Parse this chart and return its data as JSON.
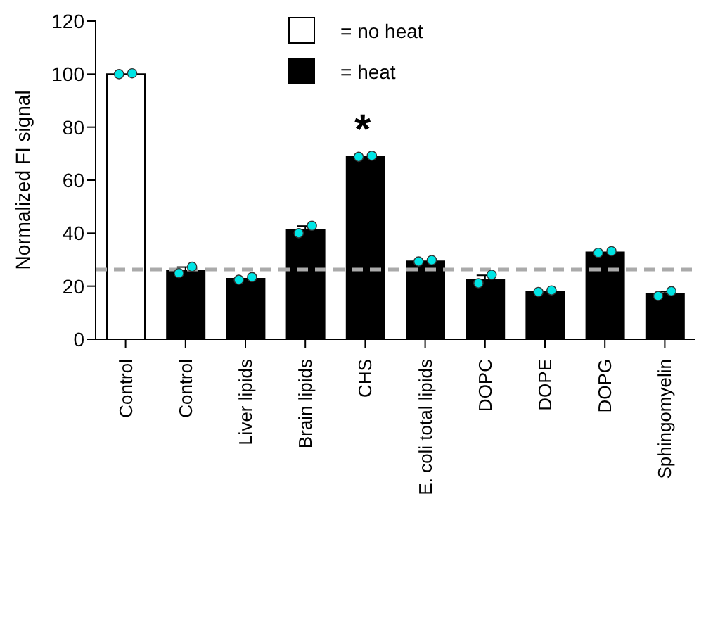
{
  "chart_data": {
    "type": "bar",
    "ylabel": "Normalized FI signal",
    "categories": [
      "Control",
      "Control",
      "Liver lipids",
      "Brain lipids",
      "CHS",
      "E. coli total lipids",
      "DOPC",
      "DOPE",
      "DOPG",
      "Sphingomyelin"
    ],
    "stacked": true,
    "series": [
      {
        "name": "= no heat",
        "color": "#ffffff",
        "values": [
          100,
          null,
          null,
          null,
          null,
          null,
          null,
          null,
          null,
          null
        ]
      },
      {
        "name": "= heat",
        "color": "#000000",
        "values": [
          null,
          26,
          22.8,
          41.3,
          69,
          29.4,
          22.5,
          17.8,
          32.8,
          17
        ],
        "errors": [
          null,
          1.2,
          null,
          1.4,
          null,
          null,
          1.6,
          null,
          null,
          0.9
        ]
      },
      {
        "type": "scatter",
        "color": "#00e5e5",
        "values": [
          100,
          24.9,
          22.4,
          40,
          68.8,
          29.3,
          21.1,
          17.8,
          32.6,
          16.3
        ]
      },
      {
        "type": "scatter",
        "color": "#00e5e5",
        "values": [
          100.3,
          27.3,
          23.4,
          42.8,
          69.2,
          29.8,
          24.3,
          18.4,
          33.2,
          18.1
        ]
      }
    ],
    "ylim": [
      0,
      120
    ],
    "yticks": [
      0,
      20,
      40,
      60,
      80,
      100,
      120
    ],
    "ref_lines": [
      {
        "axis": "y",
        "value": 26.3,
        "color": "#aaaaaa",
        "line_style": "dashed"
      }
    ],
    "annotations": [
      "*"
    ],
    "legend": "top",
    "grid": false,
    "marker": "circle"
  }
}
